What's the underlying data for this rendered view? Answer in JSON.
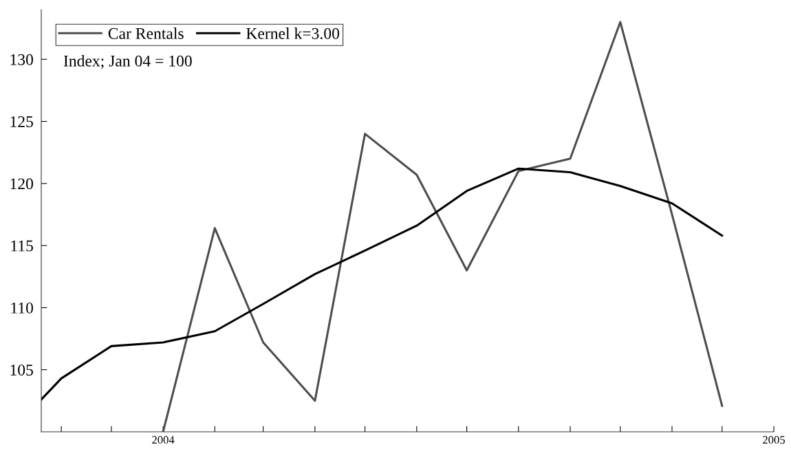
{
  "chart_data": {
    "type": "line",
    "annotations": [
      "Index; Jan 04 = 100"
    ],
    "series": [
      {
        "name": "Car Rentals",
        "color": "#4d4d4d",
        "x": [
          "2004-01",
          "2004-02",
          "2004-03",
          "2004-04",
          "2004-05",
          "2004-06",
          "2004-07",
          "2004-08",
          "2004-09",
          "2004-10",
          "2004-11",
          "2004-12"
        ],
        "values": [
          100.0,
          116.4,
          107.2,
          102.5,
          124.0,
          120.7,
          113.0,
          121.0,
          122.0,
          133.0,
          117.5,
          102.1
        ]
      },
      {
        "name": "Kernel k=3.00",
        "color": "#000000",
        "x": [
          "2003-10-20",
          "2003-11",
          "2003-12",
          "2004-01",
          "2004-02",
          "2004-03",
          "2004-04",
          "2004-05",
          "2004-06",
          "2004-07",
          "2004-08",
          "2004-09",
          "2004-10",
          "2004-11",
          "2004-12"
        ],
        "values": [
          102.6,
          104.3,
          106.9,
          107.2,
          108.1,
          110.3,
          112.7,
          114.6,
          116.6,
          119.4,
          121.2,
          120.9,
          119.8,
          118.4,
          115.8
        ]
      }
    ],
    "xlim": [
      "2003-10-20",
      "2005-01"
    ],
    "xticks": [
      {
        "value": "2003-11",
        "label": null
      },
      {
        "value": "2003-12",
        "label": null
      },
      {
        "value": "2004-01",
        "label": "2004"
      },
      {
        "value": "2004-02",
        "label": null
      },
      {
        "value": "2004-03",
        "label": null
      },
      {
        "value": "2004-04",
        "label": null
      },
      {
        "value": "2004-05",
        "label": null
      },
      {
        "value": "2004-06",
        "label": null
      },
      {
        "value": "2004-07",
        "label": null
      },
      {
        "value": "2004-08",
        "label": null
      },
      {
        "value": "2004-09",
        "label": null
      },
      {
        "value": "2004-10",
        "label": null
      },
      {
        "value": "2004-11",
        "label": null
      },
      {
        "value": "2004-12",
        "label": null
      },
      {
        "value": "2005-01",
        "label": "2005"
      }
    ],
    "ylim": [
      100,
      134
    ],
    "yticks": [
      105,
      110,
      115,
      120,
      125,
      130
    ],
    "grid": false,
    "legend": "top left",
    "marker": "none",
    "line_style": "solid"
  }
}
